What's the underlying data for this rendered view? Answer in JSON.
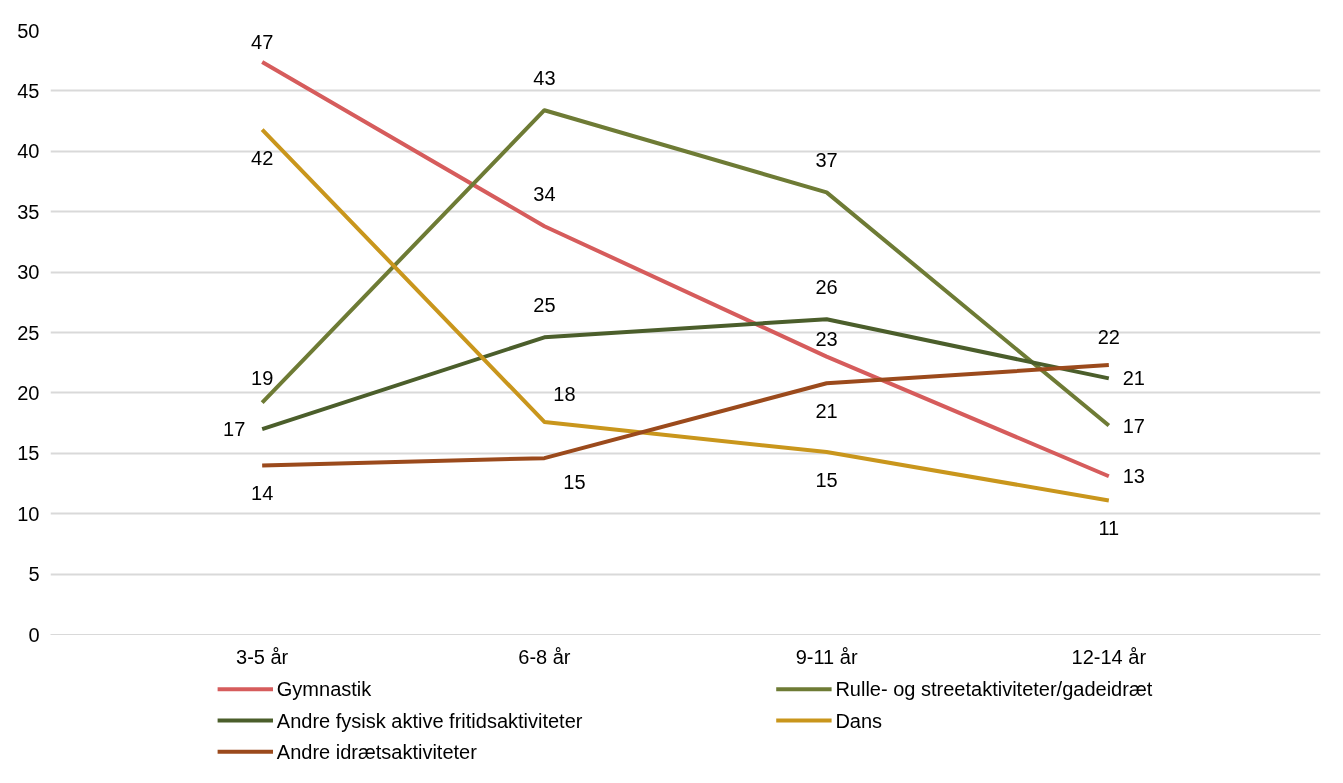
{
  "chart_data": {
    "type": "line",
    "categories": [
      "3-5 år",
      "6-8 år",
      "9-11 år",
      "12-14 år"
    ],
    "series": [
      {
        "name": "Gymnastik",
        "color": "#d65c5c",
        "values": [
          47.4,
          33.8,
          23.0,
          13.1
        ],
        "value_labels": [
          "47",
          "34",
          "23",
          "13"
        ]
      },
      {
        "name": "Rulle- og streetaktiviteter/gadeidræt",
        "color": "#6e7b35",
        "values": [
          19.2,
          43.4,
          36.6,
          17.3
        ],
        "value_labels": [
          "19",
          "43",
          "37",
          "17"
        ]
      },
      {
        "name": "Andre fysisk aktive fritidsaktiviteter",
        "color": "#4b5e2b",
        "values": [
          17.0,
          24.6,
          26.1,
          21.2
        ],
        "value_labels": [
          "17",
          "25",
          "26",
          "21"
        ]
      },
      {
        "name": "Dans",
        "color": "#c9961c",
        "values": [
          41.8,
          17.6,
          15.1,
          11.1
        ],
        "value_labels": [
          "42",
          "18",
          "15",
          "11"
        ]
      },
      {
        "name": "Andre idrætsaktiviteter",
        "color": "#9b4a1c",
        "values": [
          14.0,
          14.6,
          20.8,
          22.3
        ],
        "value_labels": [
          "14",
          "15",
          "21",
          "22"
        ]
      }
    ],
    "ylim": [
      0,
      50
    ],
    "yticks": [
      0,
      5,
      10,
      15,
      20,
      25,
      30,
      35,
      40,
      45,
      50
    ],
    "grid": "y",
    "legend": "bottom",
    "marker": "none",
    "line_style": "solid"
  }
}
